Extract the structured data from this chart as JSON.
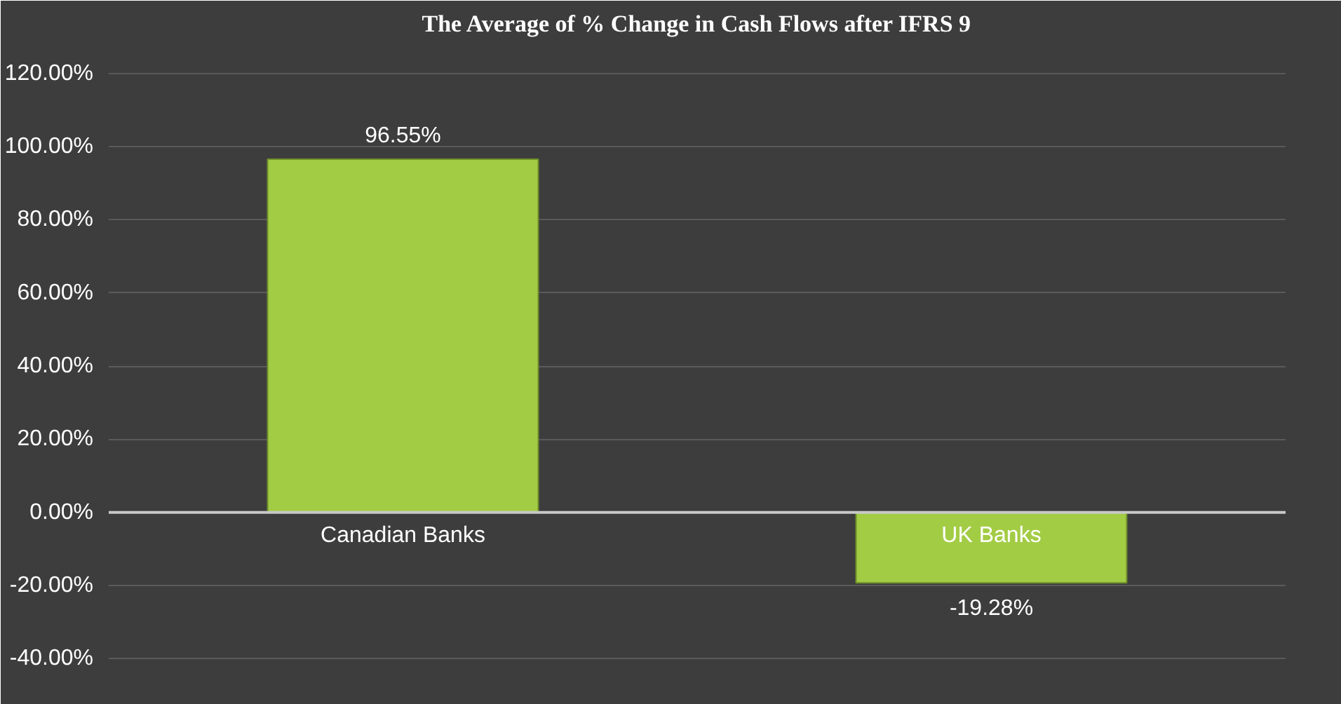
{
  "chart_data": {
    "type": "bar",
    "title": "The Average of % Change in Cash Flows after IFRS 9",
    "categories": [
      "Canadian Banks",
      "UK Banks"
    ],
    "values": [
      96.55,
      -19.28
    ],
    "value_labels": [
      "96.55%",
      "-19.28%"
    ],
    "color": "#a3cc45",
    "ylim": [
      -48,
      128
    ],
    "yticks": [
      {
        "value": -40,
        "label": "-40.00%"
      },
      {
        "value": -20,
        "label": "-20.00%"
      },
      {
        "value": 0,
        "label": "0.00%"
      },
      {
        "value": 20,
        "label": "20.00%"
      },
      {
        "value": 40,
        "label": "40.00%"
      },
      {
        "value": 60,
        "label": "60.00%"
      },
      {
        "value": 80,
        "label": "80.00%"
      },
      {
        "value": 100,
        "label": "100.00%"
      },
      {
        "value": 120,
        "label": "120.00%"
      }
    ],
    "grid": "y"
  }
}
